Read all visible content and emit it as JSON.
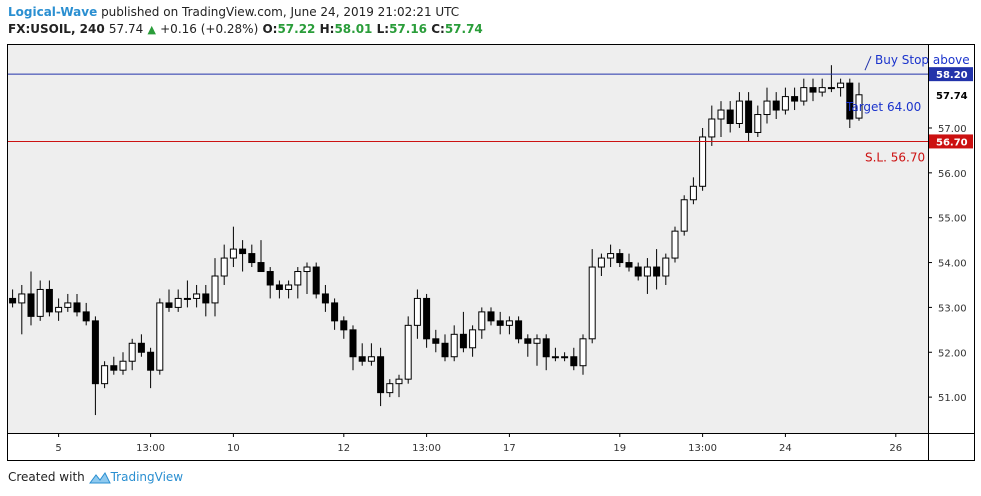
{
  "header": {
    "author": "Logical-Wave",
    "published_text": "published on TradingView.com, June 24, 2019 21:02:21 UTC",
    "symbol": "FX:USOIL, 240",
    "last": "57.74",
    "change": "+0.16 (+0.28%)",
    "o_label": "O:",
    "o_value": "57.22",
    "h_label": "H:",
    "h_value": "58.01",
    "l_label": "L:",
    "l_value": "57.16",
    "c_label": "C:",
    "c_value": "57.74"
  },
  "footer": {
    "created_with": "Created with",
    "brand": "TradingView"
  },
  "colors": {
    "buy_line": "#2233aa",
    "sl_line": "#cc1111",
    "target_text": "#1a33cc",
    "sl_text": "#cc1111",
    "up_candle": "#ffffff",
    "down_candle": "#000000",
    "last_price_label": "#ffffff",
    "grid_bg": "#eeeeee"
  },
  "chart_data": {
    "type": "candlestick",
    "y_axis": {
      "range": [
        50.2,
        58.85
      ],
      "ticks": [
        "51.00",
        "52.00",
        "53.00",
        "54.00",
        "55.00",
        "56.00",
        "57.00"
      ],
      "tick_values": [
        51,
        52,
        53,
        54,
        55,
        56,
        57
      ]
    },
    "x_axis": {
      "labels": [
        "5",
        "13:00",
        "10",
        "12",
        "13:00",
        "17",
        "19",
        "13:00",
        "24",
        "26"
      ],
      "label_bar_index": [
        5,
        15,
        24,
        36,
        45,
        54,
        66,
        75,
        84,
        96
      ]
    },
    "levels": [
      {
        "name": "Buy Stop above",
        "value": 58.2,
        "label": "58.20",
        "annotation": "Buy Stop above"
      },
      {
        "name": "S.L.",
        "value": 56.7,
        "label": "56.70",
        "annotation": "S.L.  56.70"
      },
      {
        "name": "Last",
        "value": 57.74,
        "label": "57.74"
      }
    ],
    "target_text": "Target 64.00",
    "candles": [
      [
        53.2,
        53.4,
        53.0,
        53.1
      ],
      [
        53.1,
        53.5,
        52.4,
        53.3
      ],
      [
        53.3,
        53.8,
        52.6,
        52.8
      ],
      [
        52.8,
        53.6,
        52.7,
        53.4
      ],
      [
        53.4,
        53.6,
        52.8,
        52.9
      ],
      [
        52.9,
        53.2,
        52.7,
        53.0
      ],
      [
        53.0,
        53.3,
        52.9,
        53.1
      ],
      [
        53.1,
        53.3,
        52.8,
        52.9
      ],
      [
        52.9,
        53.1,
        52.6,
        52.7
      ],
      [
        52.7,
        52.8,
        50.6,
        51.3
      ],
      [
        51.3,
        51.8,
        51.2,
        51.7
      ],
      [
        51.7,
        51.9,
        51.5,
        51.6
      ],
      [
        51.6,
        52.0,
        51.5,
        51.8
      ],
      [
        51.8,
        52.3,
        51.6,
        52.2
      ],
      [
        52.2,
        52.4,
        51.9,
        52.0
      ],
      [
        52.0,
        52.1,
        51.2,
        51.6
      ],
      [
        51.6,
        53.2,
        51.5,
        53.1
      ],
      [
        53.1,
        53.4,
        52.9,
        53.0
      ],
      [
        53.0,
        53.4,
        52.9,
        53.2
      ],
      [
        53.2,
        53.6,
        53.0,
        53.2
      ],
      [
        53.2,
        53.5,
        53.0,
        53.3
      ],
      [
        53.3,
        53.5,
        52.8,
        53.1
      ],
      [
        53.1,
        54.1,
        52.8,
        53.7
      ],
      [
        53.7,
        54.4,
        53.5,
        54.1
      ],
      [
        54.1,
        54.8,
        53.9,
        54.3
      ],
      [
        54.3,
        54.5,
        53.8,
        54.2
      ],
      [
        54.2,
        54.4,
        53.9,
        54.0
      ],
      [
        54.0,
        54.5,
        53.8,
        53.8
      ],
      [
        53.8,
        53.9,
        53.2,
        53.5
      ],
      [
        53.5,
        53.6,
        53.2,
        53.4
      ],
      [
        53.4,
        53.6,
        53.2,
        53.5
      ],
      [
        53.5,
        53.9,
        53.2,
        53.8
      ],
      [
        53.8,
        54.0,
        53.3,
        53.9
      ],
      [
        53.9,
        54.0,
        53.2,
        53.3
      ],
      [
        53.3,
        53.5,
        52.9,
        53.1
      ],
      [
        53.1,
        53.2,
        52.5,
        52.7
      ],
      [
        52.7,
        52.8,
        52.3,
        52.5
      ],
      [
        52.5,
        52.6,
        51.6,
        51.9
      ],
      [
        51.9,
        52.2,
        51.7,
        51.8
      ],
      [
        51.8,
        52.2,
        51.7,
        51.9
      ],
      [
        51.9,
        52.1,
        50.8,
        51.1
      ],
      [
        51.1,
        51.4,
        51.0,
        51.3
      ],
      [
        51.3,
        51.5,
        51.0,
        51.4
      ],
      [
        51.4,
        52.8,
        51.3,
        52.6
      ],
      [
        52.6,
        53.4,
        52.3,
        53.2
      ],
      [
        53.2,
        53.3,
        52.1,
        52.3
      ],
      [
        52.3,
        52.5,
        52.0,
        52.2
      ],
      [
        52.2,
        52.4,
        51.8,
        51.9
      ],
      [
        51.9,
        52.6,
        51.8,
        52.4
      ],
      [
        52.4,
        52.9,
        52.0,
        52.1
      ],
      [
        52.1,
        52.6,
        51.9,
        52.5
      ],
      [
        52.5,
        53.0,
        52.3,
        52.9
      ],
      [
        52.9,
        53.0,
        52.6,
        52.7
      ],
      [
        52.7,
        52.9,
        52.4,
        52.6
      ],
      [
        52.6,
        52.8,
        52.4,
        52.7
      ],
      [
        52.7,
        52.8,
        52.2,
        52.3
      ],
      [
        52.3,
        52.4,
        51.9,
        52.2
      ],
      [
        52.2,
        52.4,
        51.7,
        52.3
      ],
      [
        52.3,
        52.4,
        51.6,
        51.9
      ],
      [
        51.9,
        52.1,
        51.8,
        51.9
      ],
      [
        51.9,
        52.0,
        51.8,
        51.9
      ],
      [
        51.9,
        52.1,
        51.6,
        51.7
      ],
      [
        51.7,
        52.4,
        51.5,
        52.3
      ],
      [
        52.3,
        54.3,
        52.2,
        53.9
      ],
      [
        53.9,
        54.2,
        53.7,
        54.1
      ],
      [
        54.1,
        54.4,
        53.9,
        54.2
      ],
      [
        54.2,
        54.3,
        53.9,
        54.0
      ],
      [
        54.0,
        54.2,
        53.8,
        53.9
      ],
      [
        53.9,
        54.0,
        53.6,
        53.7
      ],
      [
        53.7,
        54.1,
        53.3,
        53.9
      ],
      [
        53.9,
        54.3,
        53.4,
        53.7
      ],
      [
        53.7,
        54.2,
        53.5,
        54.1
      ],
      [
        54.1,
        54.8,
        54.0,
        54.7
      ],
      [
        54.7,
        55.5,
        54.6,
        55.4
      ],
      [
        55.4,
        55.9,
        55.3,
        55.7
      ],
      [
        55.7,
        57.0,
        55.6,
        56.8
      ],
      [
        56.8,
        57.5,
        56.6,
        57.2
      ],
      [
        57.2,
        57.6,
        56.8,
        57.4
      ],
      [
        57.4,
        57.6,
        56.9,
        57.1
      ],
      [
        57.1,
        57.8,
        57.0,
        57.6
      ],
      [
        57.6,
        57.8,
        56.7,
        56.9
      ],
      [
        56.9,
        57.5,
        56.8,
        57.3
      ],
      [
        57.3,
        57.9,
        57.1,
        57.6
      ],
      [
        57.6,
        57.8,
        57.2,
        57.4
      ],
      [
        57.4,
        57.9,
        57.3,
        57.7
      ],
      [
        57.7,
        57.9,
        57.4,
        57.6
      ],
      [
        57.6,
        58.1,
        57.5,
        57.9
      ],
      [
        57.9,
        58.1,
        57.6,
        57.8
      ],
      [
        57.8,
        58.1,
        57.7,
        57.9
      ],
      [
        57.9,
        58.4,
        57.8,
        57.9
      ],
      [
        57.9,
        58.1,
        57.7,
        58.0
      ],
      [
        58.0,
        58.1,
        57.0,
        57.2
      ],
      [
        57.22,
        58.01,
        57.16,
        57.74
      ]
    ]
  }
}
